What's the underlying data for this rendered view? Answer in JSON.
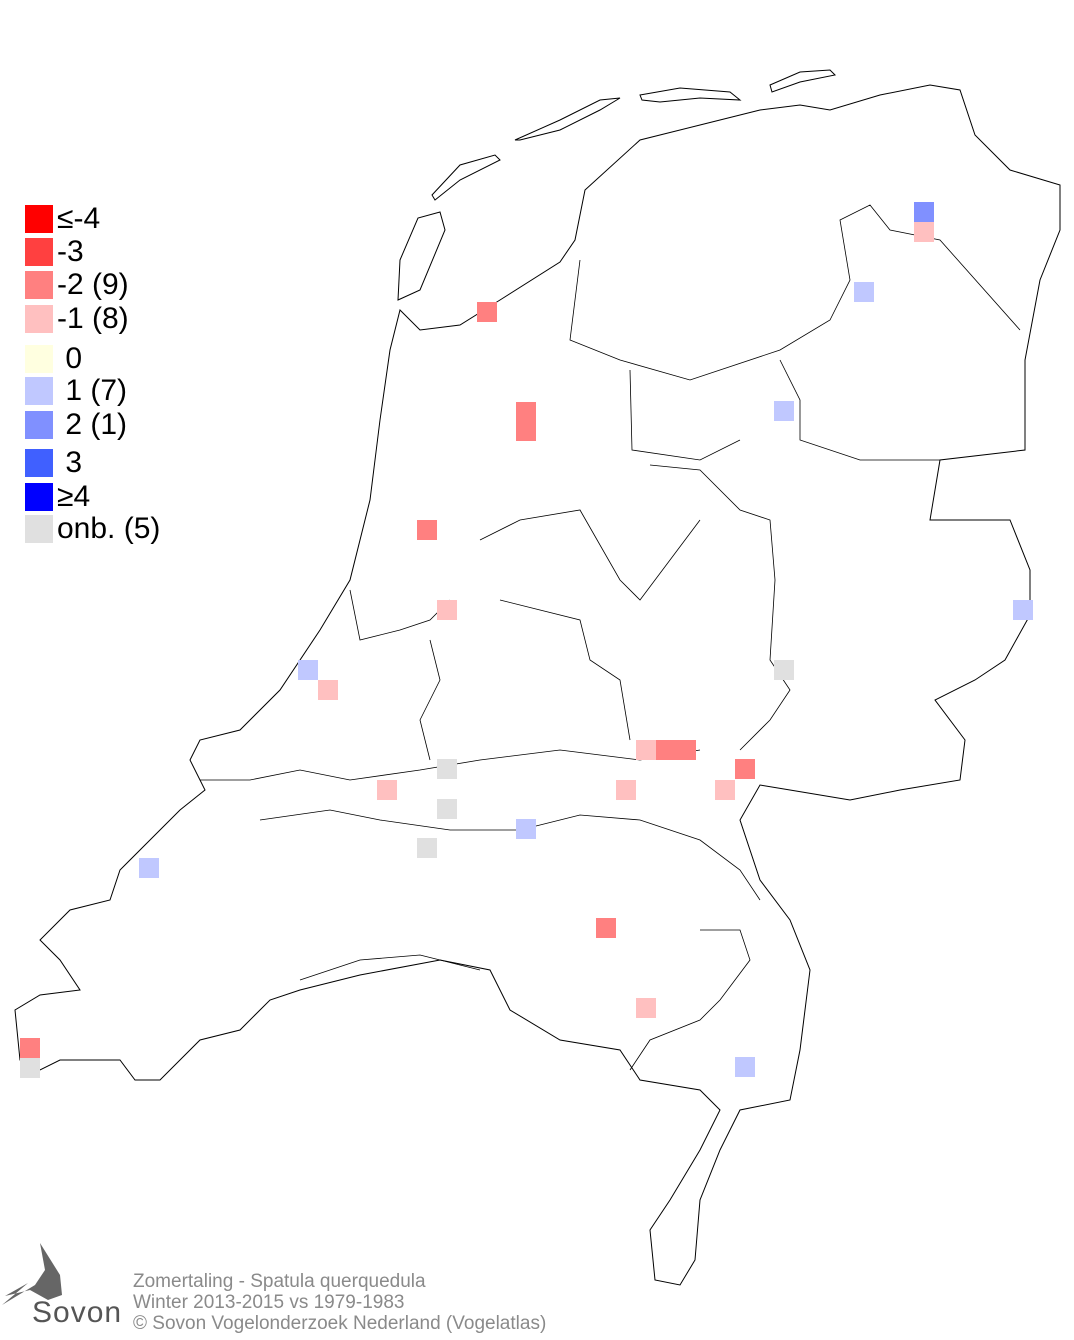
{
  "legend": [
    {
      "label": "≤-4",
      "color": "#ff0000"
    },
    {
      "label": "-3",
      "color": "#ff4040"
    },
    {
      "label": "-2 (9)",
      "color": "#ff8080"
    },
    {
      "label": "-1 (8)",
      "color": "#ffc0c0"
    },
    {
      "label": " 0",
      "color": "#ffffe0"
    },
    {
      "label": " 1 (7)",
      "color": "#c0c8ff"
    },
    {
      "label": " 2 (1)",
      "color": "#8090ff"
    },
    {
      "label": " 3",
      "color": "#4060ff"
    },
    {
      "label": "≥4",
      "color": "#0000ff"
    },
    {
      "label": "onb. (5)",
      "color": "#e0e0e0"
    }
  ],
  "footer": {
    "species": "Zomertaling - Spatula querquedula",
    "period": "Winter 2013-2015 vs 1979-1983",
    "copyright": "© Sovon Vogelonderzoek Nederland (Vogelatlas)"
  },
  "logo": {
    "text": "Sovon"
  }
}
